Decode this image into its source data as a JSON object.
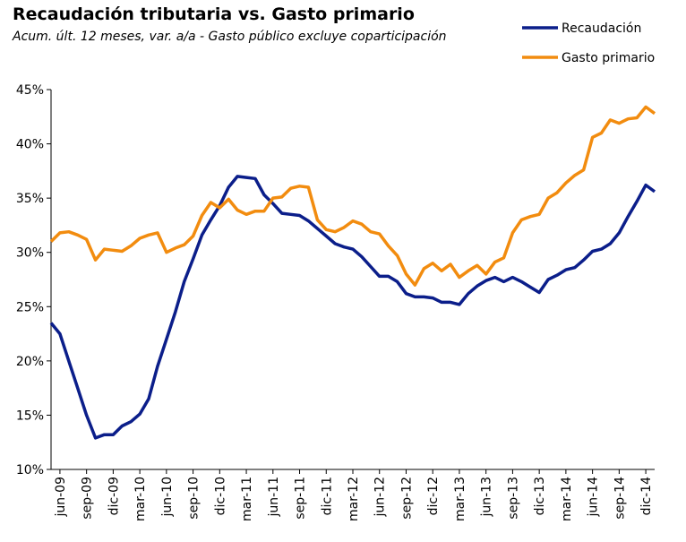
{
  "chart_data": {
    "type": "line",
    "title": "Recaudación tributaria vs. Gasto primario",
    "subtitle": "Acum. últ. 12 meses, var. a/a -  Gasto público  excluye coparticipación",
    "categories": [
      null,
      "jun-09",
      null,
      null,
      "sep-09",
      null,
      null,
      "dic-09",
      null,
      null,
      "mar-10",
      null,
      null,
      "jun-10",
      null,
      null,
      "sep-10",
      null,
      null,
      "dic-10",
      null,
      null,
      "mar-11",
      null,
      null,
      "jun-11",
      null,
      null,
      "sep-11",
      null,
      null,
      "dic-11",
      null,
      null,
      "mar-12",
      null,
      null,
      "jun-12",
      null,
      null,
      "sep-12",
      null,
      null,
      "dic-12",
      null,
      null,
      "mar-13",
      null,
      null,
      "jun-13",
      null,
      null,
      "sep-13",
      null,
      null,
      "dic-13",
      null,
      null,
      "mar-14",
      null,
      null,
      "jun-14",
      null,
      null,
      "sep-14",
      null,
      null,
      "dic-14",
      null
    ],
    "series": [
      {
        "name": "Recaudación",
        "color": "#0b1e8a",
        "values": [
          23.5,
          22.5,
          20,
          17.5,
          15,
          12.9,
          13.2,
          13.2,
          14,
          14.4,
          15.1,
          16.5,
          19.5,
          22,
          24.5,
          27.3,
          29.4,
          31.6,
          33,
          34.3,
          36,
          37,
          36.9,
          36.8,
          35.3,
          34.5,
          33.6,
          33.5,
          33.4,
          32.9,
          32.2,
          31.5,
          30.8,
          30.5,
          30.3,
          29.6,
          28.7,
          27.8,
          27.8,
          27.3,
          26.2,
          25.9,
          25.9,
          25.8,
          25.4,
          25.4,
          25.2,
          26.2,
          26.9,
          27.4,
          27.7,
          27.3,
          27.7,
          27.3,
          26.8,
          26.3,
          27.5,
          27.9,
          28.4,
          28.6,
          29.3,
          30.1,
          30.3,
          30.8,
          31.8,
          33.3,
          34.7,
          36.2,
          35.6
        ]
      },
      {
        "name": "Gasto primario",
        "color": "#f28c0f",
        "values": [
          31,
          31.8,
          31.9,
          31.6,
          31.2,
          29.3,
          30.3,
          30.2,
          30.1,
          30.6,
          31.3,
          31.6,
          31.8,
          30,
          30.4,
          30.7,
          31.5,
          33.4,
          34.6,
          34.1,
          34.9,
          33.9,
          33.5,
          33.8,
          33.8,
          35,
          35.1,
          35.9,
          36.1,
          36,
          33,
          32.1,
          31.9,
          32.3,
          32.9,
          32.6,
          31.9,
          31.7,
          30.6,
          29.7,
          28,
          27,
          28.5,
          29,
          28.3,
          28.9,
          27.7,
          28.3,
          28.8,
          28,
          29.1,
          29.5,
          31.8,
          33,
          33.3,
          33.5,
          35,
          35.5,
          36.4,
          37.1,
          37.6,
          40.6,
          41,
          42.2,
          41.9,
          42.3,
          42.4,
          43.4,
          42.8
        ]
      }
    ],
    "ylim": [
      10,
      45
    ],
    "yticks": [
      {
        "value": 10,
        "label": "10%"
      },
      {
        "value": 15,
        "label": "15%"
      },
      {
        "value": 20,
        "label": "20%"
      },
      {
        "value": 25,
        "label": "25%"
      },
      {
        "value": 30,
        "label": "30%"
      },
      {
        "value": 35,
        "label": "35%"
      },
      {
        "value": 40,
        "label": "40%"
      },
      {
        "value": 45,
        "label": "45%"
      }
    ],
    "grid": false,
    "legend": "top-right"
  }
}
